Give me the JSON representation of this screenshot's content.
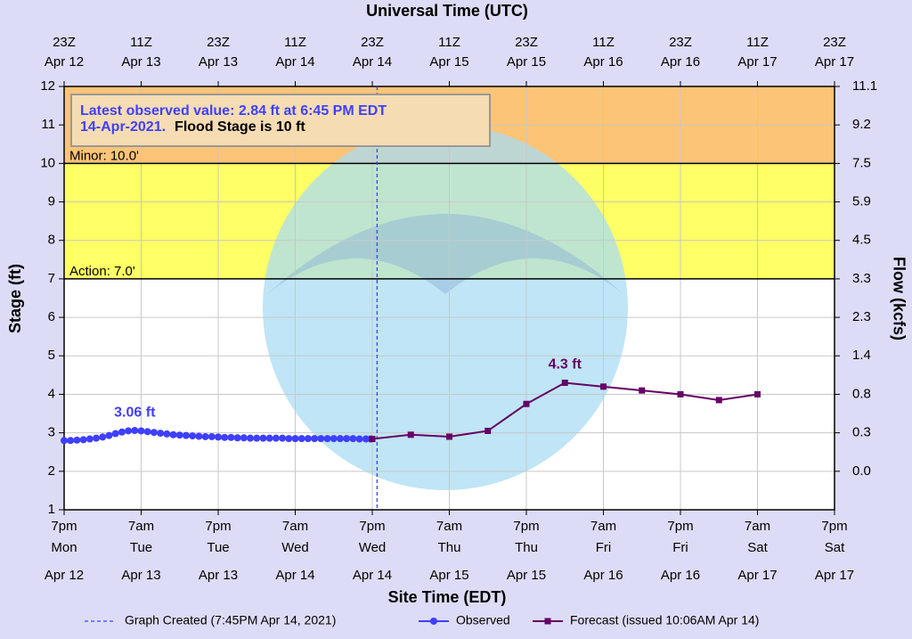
{
  "chart_data": {
    "type": "line",
    "title": "Universal Time (UTC)",
    "xlabel": "Site Time (EDT)",
    "ylabel": "Stage (ft)",
    "y2label": "Flow (kcfs)",
    "annotation": {
      "text": "Latest observed value: 2.84 ft at 6:45 PM EDT 14-Apr-2021.",
      "note": "Flood Stage is 10 ft"
    },
    "xlim": [
      "2021-04-12T19:00",
      "2021-04-17T19:00"
    ],
    "ylim": [
      1,
      12
    ],
    "yticks": [
      1,
      2,
      3,
      4,
      5,
      6,
      7,
      8,
      9,
      10,
      11,
      12
    ],
    "y2ticks": [
      {
        "value": 0,
        "label": "0.0"
      },
      0.3,
      0.8,
      1.4,
      2.3,
      3.3,
      4.5,
      5.9,
      7.5,
      9.2,
      11.1
    ],
    "grid": true,
    "xticks": [
      {
        "value": "2021-04-12T19:00",
        "label": [
          "7pm",
          "Mon",
          "Apr 12"
        ]
      },
      {
        "value": "2021-04-13T07:00",
        "label": [
          "7am",
          "Tue",
          "Apr 13"
        ]
      },
      {
        "value": "2021-04-13T19:00",
        "label": [
          "7pm",
          "Tue",
          "Apr 13"
        ]
      },
      {
        "value": "2021-04-14T07:00",
        "label": [
          "7am",
          "Wed",
          "Apr 14"
        ]
      },
      {
        "value": "2021-04-14T19:00",
        "label": [
          "7pm",
          "Wed",
          "Apr 14"
        ]
      },
      {
        "value": "2021-04-15T07:00",
        "label": [
          "7am",
          "Thu",
          "Apr 15"
        ]
      },
      {
        "value": "2021-04-15T19:00",
        "label": [
          "7pm",
          "Thu",
          "Apr 15"
        ]
      },
      {
        "value": "2021-04-16T07:00",
        "label": [
          "7am",
          "Fri",
          "Apr 16"
        ]
      },
      {
        "value": "2021-04-16T19:00",
        "label": [
          "7pm",
          "Fri",
          "Apr 16"
        ]
      },
      {
        "value": "2021-04-17T07:00",
        "label": [
          "7am",
          "Sat",
          "Apr 17"
        ]
      },
      {
        "value": "2021-04-17T19:00",
        "label": [
          "7pm",
          "Sat",
          "Apr 17"
        ]
      }
    ],
    "x2ticks": [
      {
        "value": "2021-04-12T19:00",
        "label": [
          "23Z",
          "Apr 12"
        ]
      },
      {
        "value": "2021-04-13T07:00",
        "label": [
          "11Z",
          "Apr 13"
        ]
      },
      {
        "value": "2021-04-13T19:00",
        "label": [
          "23Z",
          "Apr 13"
        ]
      },
      {
        "value": "2021-04-14T07:00",
        "label": [
          "11Z",
          "Apr 14"
        ]
      },
      {
        "value": "2021-04-14T19:00",
        "label": [
          "23Z",
          "Apr 14"
        ]
      },
      {
        "value": "2021-04-15T07:00",
        "label": [
          "11Z",
          "Apr 15"
        ]
      },
      {
        "value": "2021-04-15T19:00",
        "label": [
          "23Z",
          "Apr 15"
        ]
      },
      {
        "value": "2021-04-16T07:00",
        "label": [
          "11Z",
          "Apr 16"
        ]
      },
      {
        "value": "2021-04-16T19:00",
        "label": [
          "23Z",
          "Apr 16"
        ]
      },
      {
        "value": "2021-04-17T07:00",
        "label": [
          "11Z",
          "Apr 17"
        ]
      },
      {
        "value": "2021-04-17T19:00",
        "label": [
          "23Z",
          "Apr 17"
        ]
      }
    ],
    "thresholds": [
      {
        "label": "Minor: 10.0'",
        "value": 10,
        "color": "#fcc476"
      },
      {
        "label": "Action: 7.0'",
        "value": 7,
        "color": "#ffff66"
      }
    ],
    "vline": {
      "name": "Graph Created (7:45PM Apr 14, 2021)",
      "x": "2021-04-14T19:45",
      "color": "#3f3fff"
    },
    "series": [
      {
        "name": "Observed",
        "color": "#3f3fff",
        "marker": "circle",
        "x": [
          "2021-04-12T19:00",
          "2021-04-12T20:00",
          "2021-04-12T21:00",
          "2021-04-12T22:00",
          "2021-04-12T23:00",
          "2021-04-13T00:00",
          "2021-04-13T01:00",
          "2021-04-13T02:00",
          "2021-04-13T03:00",
          "2021-04-13T04:00",
          "2021-04-13T05:00",
          "2021-04-13T06:00",
          "2021-04-13T07:00",
          "2021-04-13T08:00",
          "2021-04-13T09:00",
          "2021-04-13T10:00",
          "2021-04-13T11:00",
          "2021-04-13T12:00",
          "2021-04-13T13:00",
          "2021-04-13T14:00",
          "2021-04-13T15:00",
          "2021-04-13T16:00",
          "2021-04-13T17:00",
          "2021-04-13T18:00",
          "2021-04-13T19:00",
          "2021-04-13T20:00",
          "2021-04-13T21:00",
          "2021-04-13T22:00",
          "2021-04-13T23:00",
          "2021-04-14T00:00",
          "2021-04-14T01:00",
          "2021-04-14T02:00",
          "2021-04-14T03:00",
          "2021-04-14T04:00",
          "2021-04-14T05:00",
          "2021-04-14T06:00",
          "2021-04-14T07:00",
          "2021-04-14T08:00",
          "2021-04-14T09:00",
          "2021-04-14T10:00",
          "2021-04-14T11:00",
          "2021-04-14T12:00",
          "2021-04-14T13:00",
          "2021-04-14T14:00",
          "2021-04-14T15:00",
          "2021-04-14T16:00",
          "2021-04-14T17:00",
          "2021-04-14T18:00",
          "2021-04-14T18:45"
        ],
        "values": [
          2.8,
          2.8,
          2.81,
          2.82,
          2.84,
          2.86,
          2.89,
          2.93,
          2.98,
          3.02,
          3.05,
          3.06,
          3.05,
          3.03,
          3.01,
          2.99,
          2.97,
          2.95,
          2.94,
          2.93,
          2.92,
          2.91,
          2.9,
          2.9,
          2.89,
          2.88,
          2.88,
          2.87,
          2.87,
          2.86,
          2.86,
          2.86,
          2.86,
          2.86,
          2.86,
          2.85,
          2.85,
          2.85,
          2.85,
          2.85,
          2.85,
          2.85,
          2.85,
          2.85,
          2.85,
          2.85,
          2.84,
          2.84,
          2.84
        ],
        "value_labels": [
          null,
          null,
          null,
          null,
          null,
          null,
          null,
          null,
          null,
          null,
          null,
          "3.06 ft",
          null,
          null,
          null,
          null,
          null,
          null,
          null,
          null,
          null,
          null,
          null,
          null,
          null,
          null,
          null,
          null,
          null,
          null,
          null,
          null,
          null,
          null,
          null,
          null,
          null,
          null,
          null,
          null,
          null,
          null,
          null,
          null,
          null,
          null,
          null,
          null,
          null
        ]
      },
      {
        "name": "Forecast (issued 10:06AM Apr 14)",
        "color": "#660066",
        "marker": "square",
        "x": [
          "2021-04-14T19:00",
          "2021-04-15T01:00",
          "2021-04-15T07:00",
          "2021-04-15T13:00",
          "2021-04-15T19:00",
          "2021-04-16T01:00",
          "2021-04-16T07:00",
          "2021-04-16T13:00",
          "2021-04-16T19:00",
          "2021-04-17T01:00",
          "2021-04-17T07:00"
        ],
        "values": [
          2.84,
          2.95,
          2.9,
          3.05,
          3.75,
          4.3,
          4.2,
          4.1,
          4.0,
          3.85,
          4.0
        ],
        "value_labels": [
          null,
          null,
          null,
          null,
          null,
          "4.3 ft",
          null,
          null,
          null,
          null,
          null
        ]
      }
    ]
  }
}
